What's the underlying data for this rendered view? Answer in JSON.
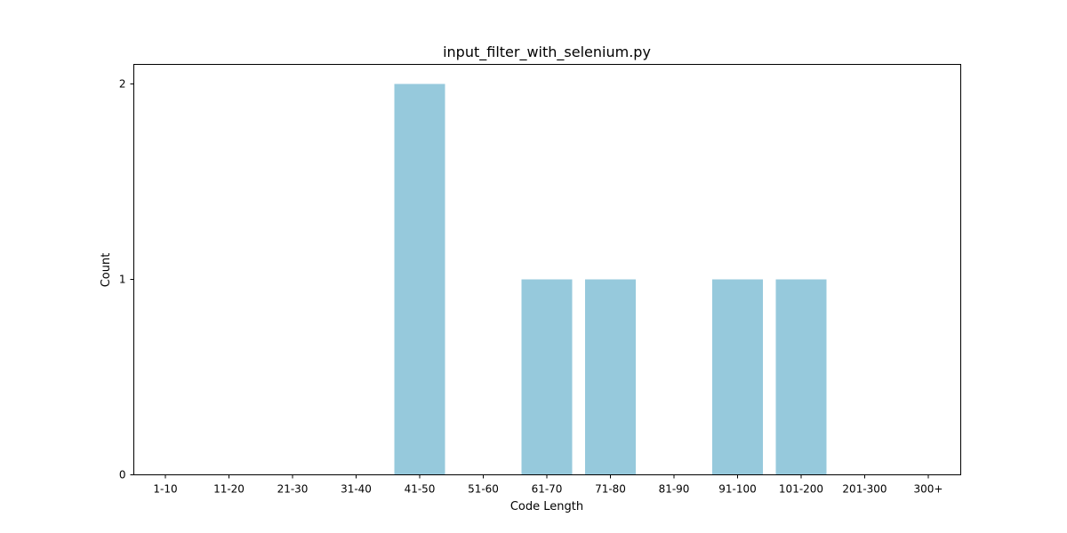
{
  "chart_data": {
    "type": "bar",
    "title": "input_filter_with_selenium.py",
    "xlabel": "Code Length",
    "ylabel": "Count",
    "categories": [
      "1-10",
      "11-20",
      "21-30",
      "31-40",
      "41-50",
      "51-60",
      "61-70",
      "71-80",
      "81-90",
      "91-100",
      "101-200",
      "201-300",
      "300+"
    ],
    "values": [
      0,
      0,
      0,
      0,
      2,
      0,
      1,
      1,
      0,
      1,
      1,
      0,
      0
    ],
    "yticks": [
      0,
      1,
      2
    ],
    "ylim": [
      0,
      2.1
    ],
    "grid": false,
    "legend": false,
    "bar_color": "#96c9dc"
  }
}
